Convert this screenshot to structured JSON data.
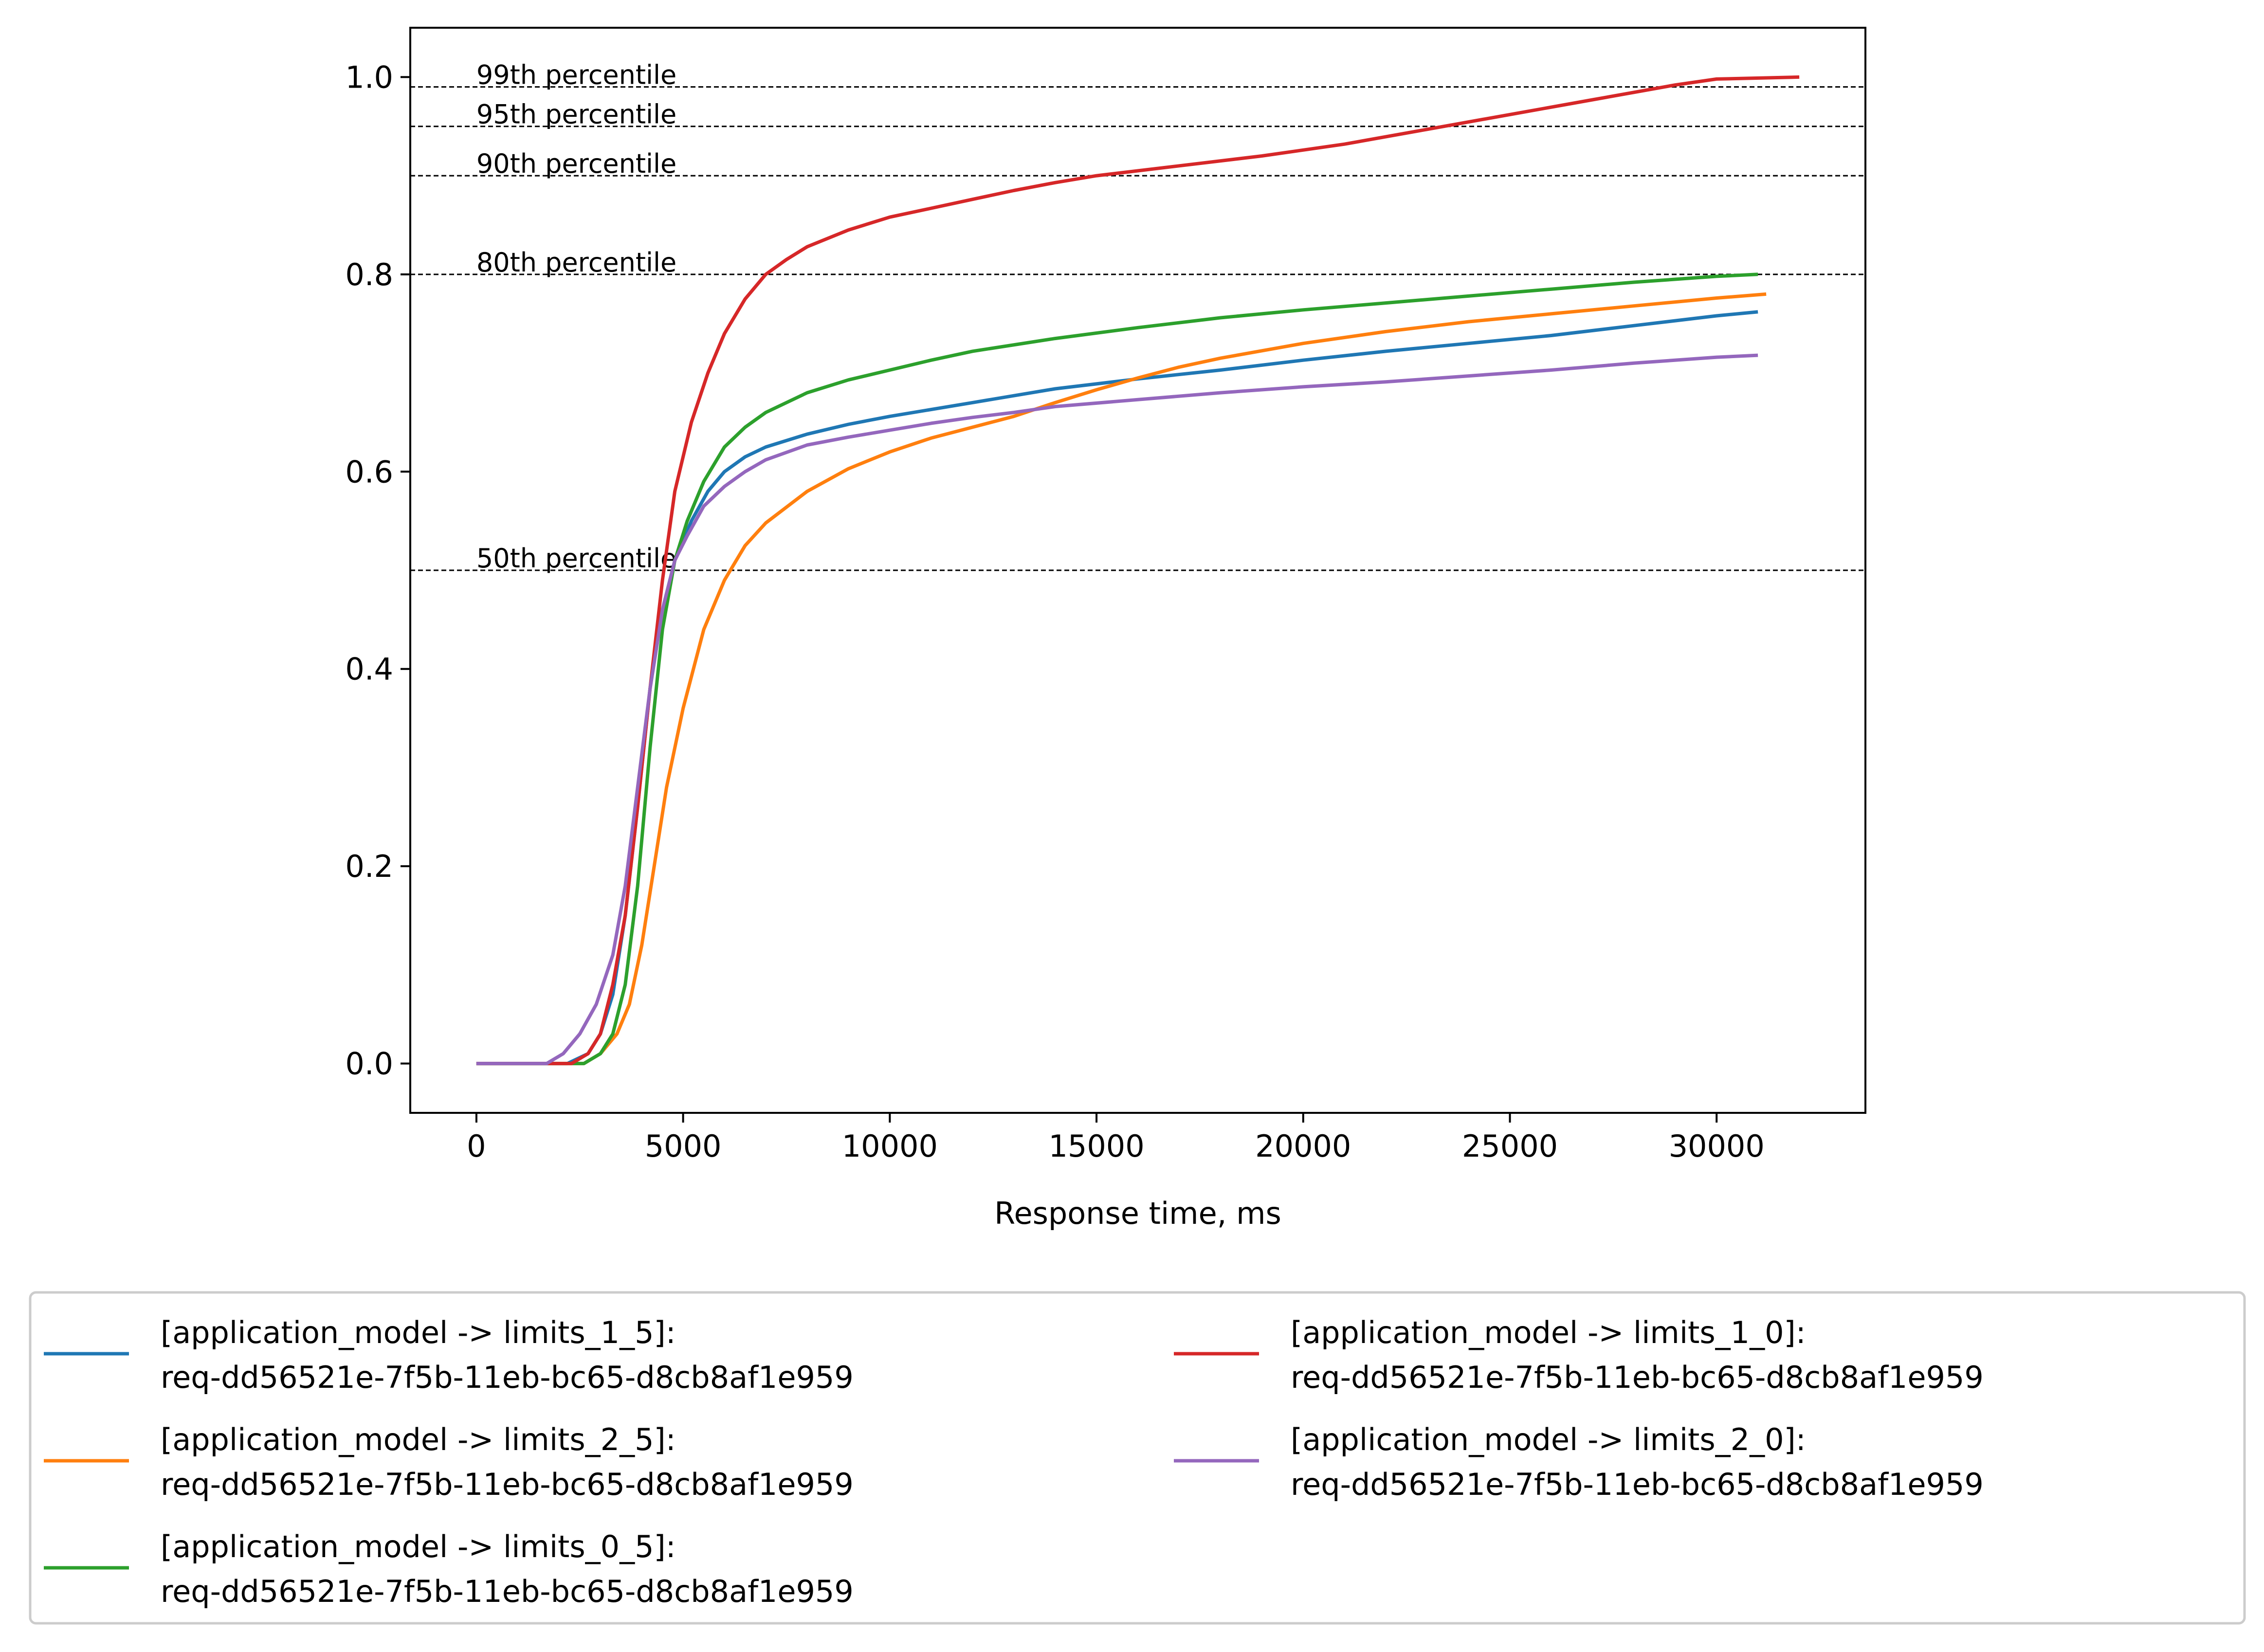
{
  "chart_data": {
    "type": "line",
    "title": "",
    "xlabel": "Response time, ms",
    "ylabel": "",
    "xlim": [
      -1600,
      33600
    ],
    "ylim": [
      -0.05,
      1.05
    ],
    "xticks": [
      0,
      5000,
      10000,
      15000,
      20000,
      25000,
      30000
    ],
    "yticks": [
      0.0,
      0.2,
      0.4,
      0.6,
      0.8,
      1.0
    ],
    "xtick_labels": [
      "0",
      "5000",
      "10000",
      "15000",
      "20000",
      "25000",
      "30000"
    ],
    "ytick_labels": [
      "0.0",
      "0.2",
      "0.4",
      "0.6",
      "0.8",
      "1.0"
    ],
    "grid": false,
    "legend_placement": "below",
    "percentile_lines": [
      {
        "label": "99th percentile",
        "y": 0.99
      },
      {
        "label": "95th percentile",
        "y": 0.95
      },
      {
        "label": "90th percentile",
        "y": 0.9
      },
      {
        "label": "80th percentile",
        "y": 0.8
      },
      {
        "label": "50th percentile",
        "y": 0.5
      }
    ],
    "series": [
      {
        "name": "[application_model -> limits_1_5]:",
        "subname": "req-dd56521e-7f5b-11eb-bc65-d8cb8af1e959",
        "color": "#1f77b4",
        "points": [
          [
            0,
            0
          ],
          [
            1500,
            0
          ],
          [
            2200,
            0
          ],
          [
            2700,
            0.01
          ],
          [
            3000,
            0.03
          ],
          [
            3300,
            0.07
          ],
          [
            3600,
            0.15
          ],
          [
            3900,
            0.26
          ],
          [
            4200,
            0.38
          ],
          [
            4500,
            0.46
          ],
          [
            4800,
            0.51
          ],
          [
            5200,
            0.55
          ],
          [
            5600,
            0.58
          ],
          [
            6000,
            0.6
          ],
          [
            6500,
            0.615
          ],
          [
            7000,
            0.625
          ],
          [
            8000,
            0.638
          ],
          [
            9000,
            0.648
          ],
          [
            10000,
            0.656
          ],
          [
            12000,
            0.67
          ],
          [
            14000,
            0.684
          ],
          [
            16000,
            0.694
          ],
          [
            18000,
            0.703
          ],
          [
            20000,
            0.713
          ],
          [
            22000,
            0.722
          ],
          [
            24000,
            0.73
          ],
          [
            26000,
            0.738
          ],
          [
            28000,
            0.748
          ],
          [
            30000,
            0.758
          ],
          [
            31000,
            0.762
          ]
        ]
      },
      {
        "name": "[application_model -> limits_2_5]:",
        "subname": "req-dd56521e-7f5b-11eb-bc65-d8cb8af1e959",
        "color": "#ff7f0e",
        "points": [
          [
            0,
            0
          ],
          [
            2000,
            0
          ],
          [
            2600,
            0
          ],
          [
            3000,
            0.01
          ],
          [
            3400,
            0.03
          ],
          [
            3700,
            0.06
          ],
          [
            4000,
            0.12
          ],
          [
            4300,
            0.2
          ],
          [
            4600,
            0.28
          ],
          [
            5000,
            0.36
          ],
          [
            5500,
            0.44
          ],
          [
            6000,
            0.49
          ],
          [
            6500,
            0.525
          ],
          [
            7000,
            0.548
          ],
          [
            8000,
            0.58
          ],
          [
            9000,
            0.603
          ],
          [
            10000,
            0.62
          ],
          [
            11000,
            0.634
          ],
          [
            12000,
            0.645
          ],
          [
            13000,
            0.656
          ],
          [
            14000,
            0.67
          ],
          [
            15000,
            0.683
          ],
          [
            16000,
            0.695
          ],
          [
            17000,
            0.706
          ],
          [
            18000,
            0.715
          ],
          [
            20000,
            0.73
          ],
          [
            22000,
            0.742
          ],
          [
            24000,
            0.752
          ],
          [
            26000,
            0.76
          ],
          [
            28000,
            0.768
          ],
          [
            30000,
            0.776
          ],
          [
            31200,
            0.78
          ]
        ]
      },
      {
        "name": "[application_model -> limits_0_5]:",
        "subname": "req-dd56521e-7f5b-11eb-bc65-d8cb8af1e959",
        "color": "#2ca02c",
        "points": [
          [
            0,
            0
          ],
          [
            2200,
            0
          ],
          [
            2600,
            0
          ],
          [
            3000,
            0.01
          ],
          [
            3300,
            0.03
          ],
          [
            3600,
            0.08
          ],
          [
            3900,
            0.18
          ],
          [
            4200,
            0.32
          ],
          [
            4500,
            0.44
          ],
          [
            4800,
            0.51
          ],
          [
            5100,
            0.55
          ],
          [
            5500,
            0.59
          ],
          [
            6000,
            0.625
          ],
          [
            6500,
            0.645
          ],
          [
            7000,
            0.66
          ],
          [
            8000,
            0.68
          ],
          [
            9000,
            0.693
          ],
          [
            10000,
            0.703
          ],
          [
            11000,
            0.713
          ],
          [
            12000,
            0.722
          ],
          [
            14000,
            0.735
          ],
          [
            16000,
            0.746
          ],
          [
            18000,
            0.756
          ],
          [
            20000,
            0.764
          ],
          [
            22000,
            0.771
          ],
          [
            24000,
            0.778
          ],
          [
            26000,
            0.785
          ],
          [
            28000,
            0.792
          ],
          [
            30000,
            0.798
          ],
          [
            31000,
            0.8
          ]
        ]
      },
      {
        "name": "[application_model -> limits_1_0]:",
        "subname": "req-dd56521e-7f5b-11eb-bc65-d8cb8af1e959",
        "color": "#d62728",
        "points": [
          [
            0,
            0
          ],
          [
            1800,
            0
          ],
          [
            2300,
            0
          ],
          [
            2700,
            0.01
          ],
          [
            3000,
            0.03
          ],
          [
            3300,
            0.08
          ],
          [
            3600,
            0.15
          ],
          [
            3900,
            0.26
          ],
          [
            4200,
            0.38
          ],
          [
            4500,
            0.49
          ],
          [
            4800,
            0.58
          ],
          [
            5200,
            0.65
          ],
          [
            5600,
            0.7
          ],
          [
            6000,
            0.74
          ],
          [
            6500,
            0.775
          ],
          [
            7000,
            0.8
          ],
          [
            7500,
            0.815
          ],
          [
            8000,
            0.828
          ],
          [
            9000,
            0.845
          ],
          [
            10000,
            0.858
          ],
          [
            11000,
            0.867
          ],
          [
            12000,
            0.876
          ],
          [
            13000,
            0.885
          ],
          [
            14000,
            0.893
          ],
          [
            15000,
            0.9
          ],
          [
            17000,
            0.91
          ],
          [
            19000,
            0.92
          ],
          [
            21000,
            0.932
          ],
          [
            23000,
            0.947
          ],
          [
            25000,
            0.962
          ],
          [
            27000,
            0.977
          ],
          [
            29000,
            0.992
          ],
          [
            30000,
            0.998
          ],
          [
            32000,
            1.0
          ]
        ]
      },
      {
        "name": "[application_model -> limits_2_0]:",
        "subname": "req-dd56521e-7f5b-11eb-bc65-d8cb8af1e959",
        "color": "#9467bd",
        "points": [
          [
            0,
            0
          ],
          [
            1200,
            0
          ],
          [
            1700,
            0
          ],
          [
            2100,
            0.01
          ],
          [
            2500,
            0.03
          ],
          [
            2900,
            0.06
          ],
          [
            3300,
            0.11
          ],
          [
            3600,
            0.18
          ],
          [
            3900,
            0.28
          ],
          [
            4200,
            0.38
          ],
          [
            4500,
            0.46
          ],
          [
            4800,
            0.51
          ],
          [
            5100,
            0.535
          ],
          [
            5500,
            0.565
          ],
          [
            6000,
            0.585
          ],
          [
            6500,
            0.6
          ],
          [
            7000,
            0.612
          ],
          [
            8000,
            0.627
          ],
          [
            9000,
            0.635
          ],
          [
            10000,
            0.642
          ],
          [
            11000,
            0.649
          ],
          [
            12000,
            0.655
          ],
          [
            13000,
            0.66
          ],
          [
            14000,
            0.666
          ],
          [
            16000,
            0.673
          ],
          [
            18000,
            0.68
          ],
          [
            20000,
            0.686
          ],
          [
            22000,
            0.691
          ],
          [
            24000,
            0.697
          ],
          [
            26000,
            0.703
          ],
          [
            28000,
            0.71
          ],
          [
            30000,
            0.716
          ],
          [
            31000,
            0.718
          ]
        ]
      }
    ]
  }
}
